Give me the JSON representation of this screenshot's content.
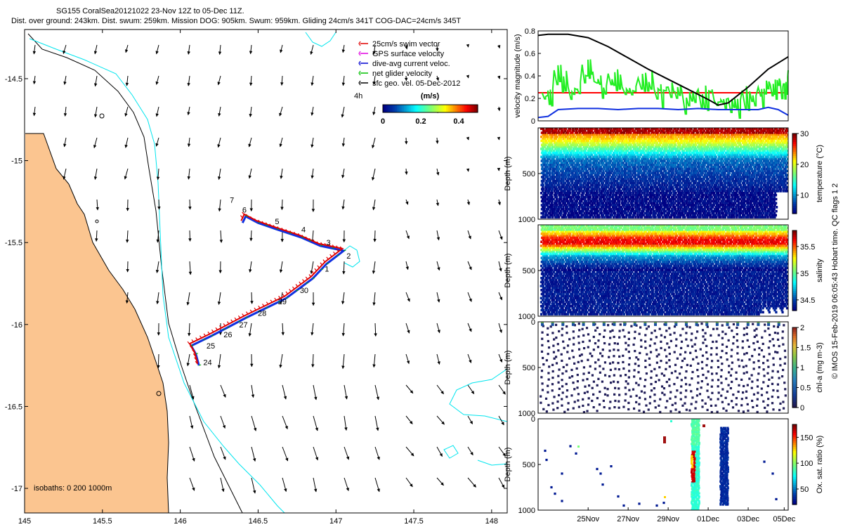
{
  "header": {
    "line1": "SG155 CoralSea20121022 23-Nov 12Z to 05-Dec 11Z.",
    "line2": "Dist. over ground: 243km. Dist. swum: 259km. Mission DOG: 905km. Swum: 959km. Gliding 24cm/s 341T COG-DAC=24cm/s 345T"
  },
  "credit": "© IMOS 15-Feb-2019 06:05:43 Hobart time. QC flags 1 2",
  "map": {
    "legend": [
      {
        "label": "25cm/s swim vector",
        "color": "#e00000"
      },
      {
        "label": "GPS surface velocity",
        "color": "#e000e0"
      },
      {
        "label": "dive-avg current veloc.",
        "color": "#0000d0"
      },
      {
        "label": "net glider velocity",
        "color": "#00c000"
      },
      {
        "label": "sfc geo. vel. 05-Dec-2012",
        "color": "#000000"
      }
    ],
    "scale_label": "4h",
    "colorbar_title": "(m/s)",
    "colorbar_ticks": [
      "0",
      "0.2",
      "0.4"
    ],
    "isobaths_label": "isobaths: 0   200  1000m",
    "colors": {
      "land": "#fbc590",
      "isobath200": "#00e5ee",
      "coast": "#000000",
      "track_swim": "#e00000",
      "track_dac": "#1030e0"
    }
  },
  "chart_data": [
    {
      "id": "track_map",
      "type": "scatter",
      "title": "",
      "xlabel": "",
      "ylabel": "",
      "xlim": [
        145,
        148.1
      ],
      "ylim": [
        -17.15,
        -14.2
      ],
      "xticks": [
        "145",
        "145.5",
        "146",
        "146.5",
        "147",
        "147.5",
        "148"
      ],
      "yticks": [
        "-14.5",
        "-15",
        "-15.5",
        "-16",
        "-16.5",
        "-17"
      ],
      "track": [
        [
          146.12,
          -16.25
        ],
        [
          146.1,
          -16.18
        ],
        [
          146.07,
          -16.13
        ],
        [
          146.2,
          -16.07
        ],
        [
          146.3,
          -16.02
        ],
        [
          146.42,
          -15.96
        ],
        [
          146.55,
          -15.9
        ],
        [
          146.68,
          -15.84
        ],
        [
          146.85,
          -15.72
        ],
        [
          146.94,
          -15.63
        ],
        [
          147.05,
          -15.55
        ],
        [
          146.9,
          -15.52
        ],
        [
          146.78,
          -15.47
        ],
        [
          146.62,
          -15.42
        ],
        [
          146.5,
          -15.38
        ],
        [
          146.42,
          -15.34
        ],
        [
          146.4,
          -15.38
        ]
      ],
      "day_labels": [
        {
          "text": "24",
          "x": 146.13,
          "y": -16.23
        },
        {
          "text": "25",
          "x": 146.15,
          "y": -16.13
        },
        {
          "text": "26",
          "x": 146.26,
          "y": -16.06
        },
        {
          "text": "27",
          "x": 146.36,
          "y": -16.0
        },
        {
          "text": "28",
          "x": 146.48,
          "y": -15.93
        },
        {
          "text": "29",
          "x": 146.61,
          "y": -15.86
        },
        {
          "text": "30",
          "x": 146.75,
          "y": -15.79
        },
        {
          "text": "1",
          "x": 146.91,
          "y": -15.66
        },
        {
          "text": "2",
          "x": 147.05,
          "y": -15.58
        },
        {
          "text": "3",
          "x": 146.92,
          "y": -15.5
        },
        {
          "text": "4",
          "x": 146.76,
          "y": -15.42
        },
        {
          "text": "5",
          "x": 146.59,
          "y": -15.37
        },
        {
          "text": "6",
          "x": 146.38,
          "y": -15.3
        },
        {
          "text": "7",
          "x": 146.3,
          "y": -15.24
        }
      ]
    },
    {
      "id": "velocity",
      "type": "line",
      "title": "",
      "xlabel": "",
      "ylabel": "velocity magnitude (m/s)",
      "ylim": [
        0,
        0.8
      ],
      "yticks": [
        "0",
        "0.2",
        "0.4",
        "0.6",
        "0.8"
      ],
      "xlim_days": [
        0,
        12.5
      ],
      "series": [
        {
          "name": "25cm/s swim vector",
          "color": "#ff0000",
          "x": [
            0,
            12.5
          ],
          "values": [
            0.25,
            0.25
          ]
        },
        {
          "name": "net glider velocity",
          "color": "#22ee22",
          "x": [
            0.2,
            0.8,
            1.5,
            2.2,
            2.8,
            3.5,
            4.2,
            5.0,
            5.8,
            6.5,
            7.2,
            8.0,
            8.8,
            9.5,
            10.2,
            11.0,
            11.6,
            12.1,
            12.5
          ],
          "values": [
            0.25,
            0.45,
            0.3,
            0.5,
            0.35,
            0.42,
            0.3,
            0.38,
            0.28,
            0.3,
            0.25,
            0.28,
            0.18,
            0.2,
            0.27,
            0.3,
            0.32,
            0.35,
            0.45
          ]
        },
        {
          "name": "dive-avg current veloc.",
          "color": "#1030e0",
          "x": [
            0,
            0.5,
            1.0,
            2.0,
            3.0,
            4.0,
            5.0,
            6.0,
            7.0,
            8.0,
            9.0,
            10.0,
            11.0,
            11.5,
            12.0,
            12.5
          ],
          "values": [
            0.03,
            0.04,
            0.1,
            0.11,
            0.11,
            0.1,
            0.11,
            0.11,
            0.1,
            0.11,
            0.1,
            0.1,
            0.1,
            0.12,
            0.1,
            0.05
          ]
        },
        {
          "name": "sfc geo. vel.",
          "color": "#000000",
          "x": [
            0,
            0.5,
            1.5,
            2.5,
            3.5,
            4.5,
            5.5,
            6.5,
            7.5,
            8.5,
            9.0,
            9.5,
            10.5,
            11.5,
            12.5
          ],
          "values": [
            0.76,
            0.77,
            0.77,
            0.74,
            0.66,
            0.56,
            0.46,
            0.37,
            0.28,
            0.19,
            0.14,
            0.16,
            0.3,
            0.46,
            0.57
          ]
        }
      ]
    },
    {
      "id": "temperature_section",
      "type": "heatmap",
      "ylabel": "Depth (m)",
      "ylim": [
        1000,
        0
      ],
      "yticks": [
        "500",
        "1000"
      ],
      "colorbar_label": "temperature (°C)",
      "colorbar_ticks": [
        "10",
        "20",
        "30"
      ],
      "clim": [
        4,
        30
      ]
    },
    {
      "id": "salinity_section",
      "type": "heatmap",
      "ylabel": "Depth (m)",
      "ylim": [
        1000,
        0
      ],
      "yticks": [
        "500",
        "1000"
      ],
      "colorbar_label": "salinity",
      "colorbar_ticks": [
        "34.5",
        "35",
        "35.5"
      ],
      "clim": [
        34.3,
        35.8
      ]
    },
    {
      "id": "chla_section",
      "type": "heatmap",
      "ylabel": "Depth (m)",
      "ylim": [
        1000,
        0
      ],
      "yticks": [
        "0",
        "500",
        "1000"
      ],
      "colorbar_label": "chl-a (mg m-3)",
      "colorbar_ticks": [
        "0",
        "0.5",
        "1",
        "1.5",
        "2"
      ],
      "clim": [
        0,
        2
      ]
    },
    {
      "id": "oxygen_section",
      "type": "heatmap",
      "ylabel": "Depth (m)",
      "ylim": [
        1000,
        0
      ],
      "yticks": [
        "0",
        "500",
        "1000"
      ],
      "colorbar_label": "Ox. sat. ratio (%)",
      "colorbar_ticks": [
        "50",
        "100",
        "150"
      ],
      "clim": [
        20,
        175
      ],
      "xticks": [
        "25Nov",
        "27Nov",
        "29Nov",
        "01Dec",
        "03Dec",
        "05Dec"
      ]
    }
  ]
}
